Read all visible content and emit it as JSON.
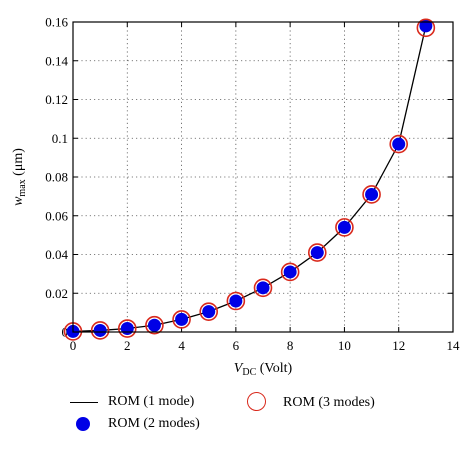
{
  "chart_data": {
    "type": "line",
    "xlabel": {
      "main": "V",
      "sub": "DC",
      "rest": " (Volt)"
    },
    "ylabel": {
      "main": "w",
      "sub": "max",
      "rest": " (μm)"
    },
    "xlim": [
      0,
      14
    ],
    "ylim": [
      0,
      0.16
    ],
    "xticks": [
      "0",
      "2",
      "4",
      "6",
      "8",
      "10",
      "12",
      "14"
    ],
    "yticks": [
      "0",
      "0.02",
      "0.04",
      "0.06",
      "0.08",
      "0.1",
      "0.12",
      "0.14",
      "0.16"
    ],
    "grid": true,
    "grid_style": "dotted",
    "legend_position": "bottom",
    "series": [
      {
        "name": "ROM (1 mode)",
        "style": "line",
        "color": "#000000",
        "x": [
          0,
          1,
          2,
          3,
          4,
          5,
          6,
          7,
          8,
          9,
          10,
          11,
          12,
          13
        ],
        "y": [
          0.0003,
          0.0008,
          0.0018,
          0.0035,
          0.0065,
          0.0105,
          0.016,
          0.0228,
          0.031,
          0.041,
          0.054,
          0.071,
          0.097,
          0.158
        ]
      },
      {
        "name": "ROM (2 modes)",
        "style": "filled-marker",
        "color": "#0000e6",
        "x": [
          0,
          1,
          2,
          3,
          4,
          5,
          6,
          7,
          8,
          9,
          10,
          11,
          12,
          13
        ],
        "y": [
          0.0003,
          0.0008,
          0.0018,
          0.0035,
          0.0065,
          0.0105,
          0.016,
          0.0228,
          0.031,
          0.041,
          0.054,
          0.071,
          0.097,
          0.158
        ]
      },
      {
        "name": "ROM (3 modes)",
        "style": "hollow-marker",
        "color": "#d9291c",
        "x": [
          0,
          1,
          2,
          3,
          4,
          5,
          6,
          7,
          8,
          9,
          10,
          11,
          12,
          13
        ],
        "y": [
          0.0003,
          0.0008,
          0.0018,
          0.0035,
          0.0065,
          0.0105,
          0.016,
          0.0228,
          0.031,
          0.041,
          0.054,
          0.071,
          0.097,
          0.157
        ]
      }
    ]
  }
}
